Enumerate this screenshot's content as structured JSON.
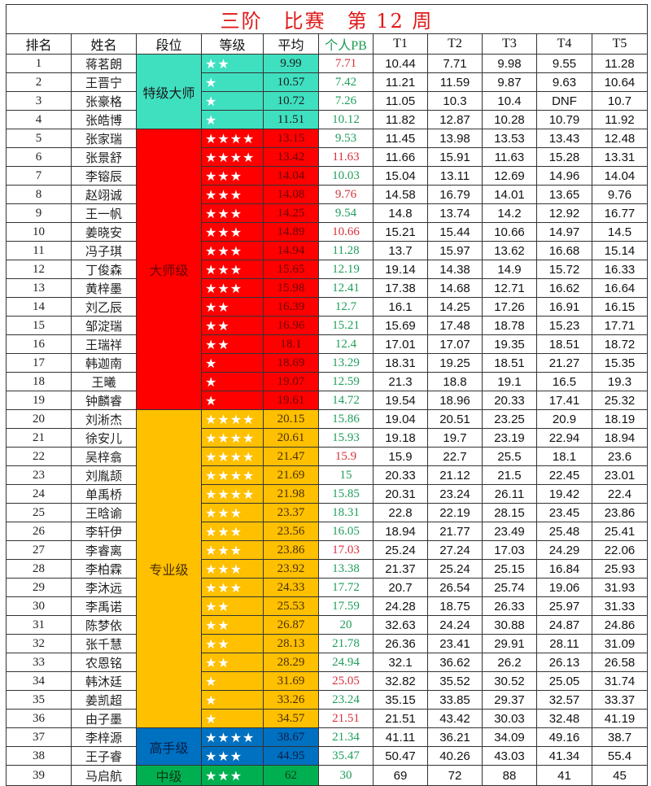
{
  "title": "三阶　比赛　第 12 周",
  "headers": [
    "排名",
    "姓名",
    "段位",
    "等级",
    "平均",
    "个人PB",
    "T1",
    "T2",
    "T3",
    "T4",
    "T5"
  ],
  "colors": {
    "pb_red": "#d8303c",
    "pb_green": "#1f9e5a",
    "title": "#e01818"
  },
  "groups": [
    {
      "label": "特级大师",
      "color": "#3fe0c0",
      "text": "#1a1a1a",
      "rows": 4
    },
    {
      "label": "大师级",
      "color": "#ff0000",
      "text": "#6a0000",
      "rows": 15
    },
    {
      "label": "专业级",
      "color": "#ffc000",
      "text": "#4a3000",
      "rows": 17
    },
    {
      "label": "高手级",
      "color": "#0070c0",
      "text": "#0a1f4a",
      "rows": 2
    },
    {
      "label": "中级",
      "color": "#00b050",
      "text": "#0a3a1a",
      "rows": 1
    }
  ],
  "rows": [
    {
      "rank": "1",
      "name": "蒋茗朗",
      "stars": "★★",
      "avg": "9.99",
      "pb": "7.71",
      "pb_color": "red",
      "t": [
        "10.44",
        "7.71",
        "9.98",
        "9.55",
        "11.28"
      ]
    },
    {
      "rank": "2",
      "name": "王晋宁",
      "stars": "★",
      "avg": "10.57",
      "pb": "7.42",
      "pb_color": "green",
      "t": [
        "11.21",
        "11.59",
        "9.87",
        "9.63",
        "10.64"
      ]
    },
    {
      "rank": "3",
      "name": "张豪格",
      "stars": "★",
      "avg": "10.72",
      "pb": "7.26",
      "pb_color": "green",
      "t": [
        "11.05",
        "10.3",
        "10.4",
        "DNF",
        "10.7"
      ]
    },
    {
      "rank": "4",
      "name": "张皓博",
      "stars": "★",
      "avg": "11.51",
      "pb": "10.12",
      "pb_color": "green",
      "t": [
        "11.82",
        "12.87",
        "10.28",
        "10.79",
        "11.92"
      ]
    },
    {
      "rank": "5",
      "name": "张家瑞",
      "stars": "★★★★",
      "avg": "13.15",
      "pb": "9.53",
      "pb_color": "green",
      "t": [
        "11.45",
        "13.98",
        "13.53",
        "13.43",
        "12.48"
      ]
    },
    {
      "rank": "6",
      "name": "张景舒",
      "stars": "★★★★",
      "avg": "13.42",
      "pb": "11.63",
      "pb_color": "red",
      "t": [
        "11.66",
        "15.91",
        "11.63",
        "15.28",
        "13.31"
      ]
    },
    {
      "rank": "7",
      "name": "李镕辰",
      "stars": "★★★",
      "avg": "14.04",
      "pb": "10.03",
      "pb_color": "green",
      "t": [
        "15.04",
        "13.11",
        "12.69",
        "14.96",
        "14.04"
      ]
    },
    {
      "rank": "8",
      "name": "赵翊诚",
      "stars": "★★★",
      "avg": "14.08",
      "pb": "9.76",
      "pb_color": "red",
      "t": [
        "14.58",
        "16.79",
        "14.01",
        "13.65",
        "9.76"
      ]
    },
    {
      "rank": "9",
      "name": "王一帆",
      "stars": "★★★",
      "avg": "14.25",
      "pb": "9.54",
      "pb_color": "green",
      "t": [
        "14.8",
        "13.74",
        "14.2",
        "12.92",
        "16.77"
      ]
    },
    {
      "rank": "10",
      "name": "姜晓安",
      "stars": "★★★",
      "avg": "14.89",
      "pb": "10.66",
      "pb_color": "red",
      "t": [
        "15.21",
        "15.44",
        "10.66",
        "14.97",
        "14.5"
      ]
    },
    {
      "rank": "11",
      "name": "冯子琪",
      "stars": "★★★",
      "avg": "14.94",
      "pb": "11.28",
      "pb_color": "green",
      "t": [
        "13.7",
        "15.97",
        "13.62",
        "16.68",
        "15.14"
      ]
    },
    {
      "rank": "12",
      "name": "丁俊森",
      "stars": "★★★",
      "avg": "15.65",
      "pb": "12.19",
      "pb_color": "green",
      "t": [
        "19.14",
        "14.38",
        "14.9",
        "15.72",
        "16.33"
      ]
    },
    {
      "rank": "13",
      "name": "黄梓墨",
      "stars": "★★★",
      "avg": "15.98",
      "pb": "12.41",
      "pb_color": "green",
      "t": [
        "17.38",
        "14.68",
        "12.71",
        "16.62",
        "16.64"
      ]
    },
    {
      "rank": "14",
      "name": "刘乙辰",
      "stars": "★★",
      "avg": "16.39",
      "pb": "12.7",
      "pb_color": "green",
      "t": [
        "16.1",
        "14.25",
        "17.26",
        "16.91",
        "16.15"
      ]
    },
    {
      "rank": "15",
      "name": "邹淀瑞",
      "stars": "★★",
      "avg": "16.96",
      "pb": "15.21",
      "pb_color": "green",
      "t": [
        "15.69",
        "17.48",
        "18.78",
        "15.23",
        "17.71"
      ]
    },
    {
      "rank": "16",
      "name": "王瑞祥",
      "stars": "★★",
      "avg": "18.1",
      "pb": "12.4",
      "pb_color": "green",
      "t": [
        "17.01",
        "17.07",
        "19.35",
        "18.51",
        "18.72"
      ]
    },
    {
      "rank": "17",
      "name": "韩迦南",
      "stars": "★",
      "avg": "18.69",
      "pb": "13.29",
      "pb_color": "green",
      "t": [
        "18.31",
        "19.25",
        "18.51",
        "21.27",
        "15.35"
      ]
    },
    {
      "rank": "18",
      "name": "王曦",
      "stars": "★",
      "avg": "19.07",
      "pb": "12.59",
      "pb_color": "green",
      "t": [
        "21.3",
        "18.8",
        "19.1",
        "16.5",
        "19.3"
      ]
    },
    {
      "rank": "19",
      "name": "钟麟睿",
      "stars": "★",
      "avg": "19.61",
      "pb": "14.72",
      "pb_color": "green",
      "t": [
        "19.54",
        "18.96",
        "20.33",
        "17.41",
        "25.32"
      ]
    },
    {
      "rank": "20",
      "name": "刘淅杰",
      "stars": "★★★★",
      "avg": "20.15",
      "pb": "15.86",
      "pb_color": "green",
      "t": [
        "19.04",
        "20.51",
        "23.25",
        "20.9",
        "18.19"
      ]
    },
    {
      "rank": "21",
      "name": "徐安儿",
      "stars": "★★★★",
      "avg": "20.61",
      "pb": "15.93",
      "pb_color": "green",
      "t": [
        "19.18",
        "19.7",
        "23.19",
        "22.94",
        "18.94"
      ]
    },
    {
      "rank": "22",
      "name": "吴梓翕",
      "stars": "★★★★",
      "avg": "21.47",
      "pb": "15.9",
      "pb_color": "red",
      "t": [
        "15.9",
        "22.7",
        "25.5",
        "18.1",
        "23.6"
      ]
    },
    {
      "rank": "23",
      "name": "刘胤颉",
      "stars": "★★★★",
      "avg": "21.69",
      "pb": "15",
      "pb_color": "green",
      "t": [
        "20.33",
        "21.12",
        "21.5",
        "22.45",
        "23.01"
      ]
    },
    {
      "rank": "24",
      "name": "单禹桥",
      "stars": "★★★★",
      "avg": "21.98",
      "pb": "15.85",
      "pb_color": "green",
      "t": [
        "20.31",
        "23.24",
        "26.11",
        "19.42",
        "22.4"
      ]
    },
    {
      "rank": "25",
      "name": "王晗谕",
      "stars": "★★★",
      "avg": "23.37",
      "pb": "18.31",
      "pb_color": "green",
      "t": [
        "22.8",
        "22.19",
        "28.15",
        "23.45",
        "23.86"
      ]
    },
    {
      "rank": "26",
      "name": "李轩伊",
      "stars": "★★★",
      "avg": "23.56",
      "pb": "16.05",
      "pb_color": "green",
      "t": [
        "18.94",
        "21.77",
        "23.49",
        "25.48",
        "25.41"
      ]
    },
    {
      "rank": "27",
      "name": "李睿离",
      "stars": "★★★",
      "avg": "23.86",
      "pb": "17.03",
      "pb_color": "red",
      "t": [
        "25.24",
        "27.24",
        "17.03",
        "24.29",
        "22.06"
      ]
    },
    {
      "rank": "28",
      "name": "李柏霖",
      "stars": "★★★",
      "avg": "23.92",
      "pb": "13.38",
      "pb_color": "green",
      "t": [
        "21.37",
        "25.24",
        "25.15",
        "16.84",
        "25.93"
      ]
    },
    {
      "rank": "29",
      "name": "李沐远",
      "stars": "★★★",
      "avg": "24.33",
      "pb": "17.72",
      "pb_color": "green",
      "t": [
        "20.7",
        "26.54",
        "25.74",
        "19.06",
        "31.93"
      ]
    },
    {
      "rank": "30",
      "name": "李禹诺",
      "stars": "★★",
      "avg": "25.53",
      "pb": "17.59",
      "pb_color": "green",
      "t": [
        "24.28",
        "18.75",
        "26.33",
        "25.97",
        "31.33"
      ]
    },
    {
      "rank": "31",
      "name": "陈梦依",
      "stars": "★★",
      "avg": "26.87",
      "pb": "20",
      "pb_color": "green",
      "t": [
        "32.63",
        "24.24",
        "30.88",
        "24.87",
        "24.86"
      ]
    },
    {
      "rank": "32",
      "name": "张千慧",
      "stars": "★★",
      "avg": "28.13",
      "pb": "21.78",
      "pb_color": "green",
      "t": [
        "26.36",
        "23.41",
        "29.91",
        "28.11",
        "31.09"
      ]
    },
    {
      "rank": "33",
      "name": "农恩铭",
      "stars": "★★",
      "avg": "28.29",
      "pb": "24.94",
      "pb_color": "green",
      "t": [
        "32.1",
        "36.62",
        "26.2",
        "26.13",
        "26.58"
      ]
    },
    {
      "rank": "34",
      "name": "韩沐廷",
      "stars": "★",
      "avg": "31.69",
      "pb": "25.05",
      "pb_color": "red",
      "t": [
        "32.82",
        "35.52",
        "30.52",
        "25.05",
        "31.74"
      ]
    },
    {
      "rank": "35",
      "name": "姜凯超",
      "stars": "★",
      "avg": "33.26",
      "pb": "23.24",
      "pb_color": "green",
      "t": [
        "35.15",
        "33.85",
        "29.37",
        "32.57",
        "33.37"
      ]
    },
    {
      "rank": "36",
      "name": "由子墨",
      "stars": "★",
      "avg": "34.57",
      "pb": "21.51",
      "pb_color": "red",
      "t": [
        "21.51",
        "43.42",
        "30.03",
        "32.48",
        "41.19"
      ]
    },
    {
      "rank": "37",
      "name": "李梓源",
      "stars": "★★★★",
      "avg": "38.67",
      "pb": "21.34",
      "pb_color": "green",
      "t": [
        "41.11",
        "36.21",
        "34.09",
        "49.16",
        "38.7"
      ]
    },
    {
      "rank": "38",
      "name": "王子睿",
      "stars": "★★★",
      "avg": "44.95",
      "pb": "35.47",
      "pb_color": "green",
      "t": [
        "50.47",
        "40.26",
        "43.03",
        "41.34",
        "55.4"
      ]
    },
    {
      "rank": "39",
      "name": "马启航",
      "stars": "★★★",
      "avg": "62",
      "pb": "30",
      "pb_color": "green",
      "t": [
        "69",
        "72",
        "88",
        "41",
        "45"
      ]
    }
  ]
}
